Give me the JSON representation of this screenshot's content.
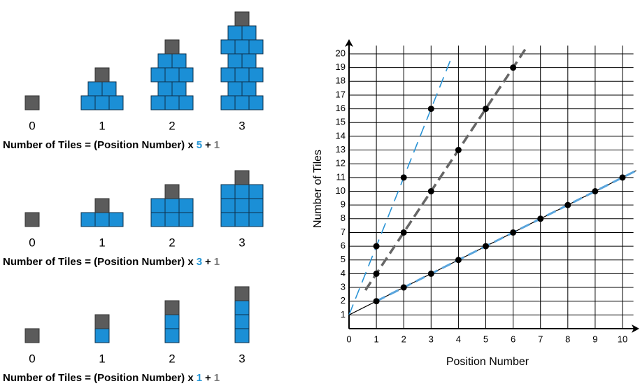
{
  "patterns": [
    {
      "positions": [
        0,
        1,
        2,
        3
      ],
      "formula": {
        "prefix": "Number of Tiles = (Position Number) x",
        "multiplier": 5,
        "plus": "+",
        "constant": 1
      }
    },
    {
      "positions": [
        0,
        1,
        2,
        3
      ],
      "formula": {
        "prefix": "Number of Tiles = (Position Number) x",
        "multiplier": 3,
        "plus": "+",
        "constant": 1
      }
    },
    {
      "positions": [
        0,
        1,
        2,
        3
      ],
      "formula": {
        "prefix": "Number of Tiles = (Position Number) x",
        "multiplier": 1,
        "plus": "+",
        "constant": 1
      }
    }
  ],
  "chart_data": {
    "type": "line",
    "x_label": "Position Number",
    "y_label": "Number of Tiles",
    "xlim": [
      0,
      10
    ],
    "ylim": [
      0,
      20
    ],
    "xticks": [
      0,
      1,
      2,
      3,
      4,
      5,
      6,
      7,
      8,
      9,
      10
    ],
    "yticks": [
      1,
      2,
      3,
      4,
      5,
      6,
      7,
      8,
      9,
      10,
      11,
      12,
      13,
      14,
      15,
      16,
      17,
      18,
      19,
      20
    ],
    "grid": true,
    "series": [
      {
        "color": "#2a93d5",
        "style": "dashed",
        "width": 1.6,
        "x": [
          0,
          3.7
        ],
        "values": [
          1,
          19.5
        ],
        "points": {
          "x": [
            1,
            2,
            3
          ],
          "values": [
            6,
            11,
            16
          ]
        }
      },
      {
        "color": "#666666",
        "style": "dashed",
        "width": 3.5,
        "x": [
          0.6,
          6.5
        ],
        "values": [
          2.8,
          20.5
        ],
        "points": {
          "x": [
            1,
            2,
            3,
            4,
            5,
            6
          ],
          "values": [
            4,
            7,
            10,
            13,
            16,
            19
          ]
        }
      },
      {
        "color": "#000000",
        "style": "solid",
        "width": 1.2,
        "x": [
          0,
          10.5
        ],
        "values": [
          1,
          11.5
        ],
        "points": {
          "x": [
            1,
            2,
            3,
            4,
            5,
            6,
            7,
            8,
            9,
            10
          ],
          "values": [
            2,
            3,
            4,
            5,
            6,
            7,
            8,
            9,
            10,
            11
          ]
        }
      },
      {
        "color": "#5aa5dc",
        "style": "dashed",
        "width": 3,
        "x": [
          1,
          10.5
        ],
        "values": [
          2,
          11.5
        ]
      }
    ]
  }
}
